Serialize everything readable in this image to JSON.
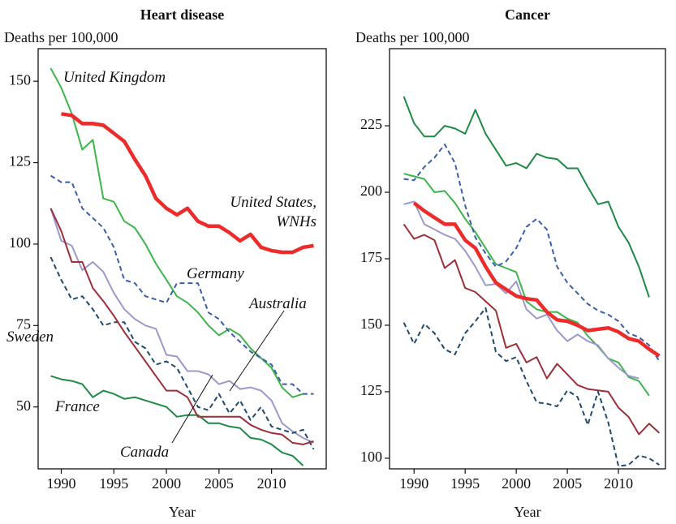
{
  "chart_data": [
    {
      "type": "line",
      "title": "Heart disease",
      "ylabel": "Deaths per 100,000",
      "xlabel": "Year",
      "x": [
        1989,
        1990,
        1991,
        1992,
        1993,
        1994,
        1995,
        1996,
        1997,
        1998,
        1999,
        2000,
        2001,
        2002,
        2003,
        2004,
        2005,
        2006,
        2007,
        2008,
        2009,
        2010,
        2011,
        2012,
        2013,
        2014
      ],
      "xlim": [
        1987.8,
        2015.2
      ],
      "xticks": [
        1990,
        1995,
        2000,
        2005,
        2010
      ],
      "ylim": [
        31,
        160
      ],
      "yticks": [
        50,
        75,
        100,
        125,
        150
      ],
      "series": [
        {
          "name": "United Kingdom",
          "color": "#3db54a",
          "values": [
            154,
            148,
            140,
            129,
            132,
            114,
            113,
            107,
            105,
            100,
            94,
            89,
            84,
            82,
            79,
            75,
            72,
            74,
            72,
            68,
            65,
            62,
            56,
            53,
            54,
            null
          ]
        },
        {
          "name": "United States, WNHs",
          "color": "#ee2b2b",
          "linewidth": 4.5,
          "values": [
            null,
            140,
            139.5,
            137,
            137,
            136.5,
            134,
            131.5,
            126,
            121,
            114,
            111,
            109,
            111,
            107,
            105.5,
            105.5,
            103.5,
            101,
            103,
            99,
            98,
            97.5,
            97.5,
            99,
            99.5
          ]
        },
        {
          "name": "Germany",
          "color": "#3a5ea8",
          "dash": true,
          "values": [
            121,
            119,
            119,
            111,
            108,
            105,
            99,
            89,
            88,
            84,
            83,
            82,
            88,
            88,
            88,
            79,
            77,
            73,
            70,
            67,
            65,
            63,
            57,
            57,
            54,
            54
          ]
        },
        {
          "name": "Australia",
          "color": "#9d98cc",
          "values": [
            111,
            101,
            99.5,
            92,
            94.5,
            91.5,
            85,
            80,
            77,
            75,
            74,
            66,
            65.5,
            61,
            61,
            60,
            57,
            58,
            55.5,
            56,
            55,
            52,
            45,
            42.5,
            40.5,
            39
          ]
        },
        {
          "name": "Sweden",
          "color": "#1f4a6e",
          "dash": true,
          "values": [
            96,
            89,
            83,
            84,
            80,
            75,
            76,
            76,
            70,
            68,
            63,
            64,
            62,
            56,
            50,
            49,
            54,
            48,
            52,
            46,
            50,
            44,
            43,
            42,
            43,
            37
          ]
        },
        {
          "name": "France",
          "color": "#1e8a45",
          "values": [
            59.5,
            58.5,
            58,
            57,
            53,
            55,
            54,
            52.5,
            53,
            52,
            51,
            50,
            47,
            47.5,
            47.5,
            45,
            45,
            44,
            43.5,
            40.5,
            40,
            38.5,
            36,
            35,
            32,
            null
          ]
        },
        {
          "name": "Canada",
          "color": "#9e2f3a",
          "values": [
            111,
            104,
            94.5,
            94.5,
            86.5,
            82.5,
            78,
            73,
            68.5,
            64,
            59.5,
            55,
            55,
            53,
            47,
            47,
            47,
            47,
            47,
            44.5,
            43,
            42,
            41.5,
            39,
            38.5,
            39.5
          ]
        }
      ]
    },
    {
      "type": "line",
      "title": "Cancer",
      "ylabel": "Deaths per 100,000",
      "xlabel": "Year",
      "x": [
        1989,
        1990,
        1991,
        1992,
        1993,
        1994,
        1995,
        1996,
        1997,
        1998,
        1999,
        2000,
        2001,
        2002,
        2003,
        2004,
        2005,
        2006,
        2007,
        2008,
        2009,
        2010,
        2011,
        2012,
        2013,
        2014
      ],
      "xlim": [
        1987.6,
        2014.6
      ],
      "xticks": [
        1990,
        1995,
        2000,
        2005,
        2010
      ],
      "ylim": [
        96,
        254
      ],
      "yticks": [
        100,
        125,
        150,
        175,
        200,
        225
      ],
      "series": [
        {
          "color": "#1e8a45",
          "values": [
            236,
            226,
            221,
            221,
            225,
            224,
            222,
            231,
            222,
            216,
            210,
            211,
            209,
            214.5,
            213,
            212.5,
            209,
            209,
            202,
            195.5,
            196.5,
            187,
            181,
            172,
            160.5,
            null
          ]
        },
        {
          "color": "#3db54a",
          "values": [
            207,
            206,
            205,
            200,
            200.5,
            196,
            190,
            185,
            179,
            173,
            171.5,
            170,
            159,
            156,
            155,
            155,
            152.5,
            151,
            146,
            142,
            137.5,
            136,
            130.5,
            129,
            123.5,
            null
          ]
        },
        {
          "color": "#3a5ea8",
          "dash": true,
          "values": [
            205,
            204.5,
            209.5,
            213,
            218,
            211,
            195,
            183,
            177,
            172,
            174,
            179,
            187,
            190,
            186,
            172,
            166,
            162,
            158,
            155.5,
            154,
            151.5,
            147,
            145.5,
            142.5,
            136.5
          ]
        },
        {
          "color": "#9d98cc",
          "values": [
            195.5,
            196.5,
            188,
            186,
            184,
            182.5,
            178,
            172,
            165,
            165.5,
            162,
            166.5,
            156,
            152.5,
            154,
            148,
            144,
            146.5,
            144,
            142.5,
            137.5,
            134,
            131,
            130,
            null,
            null
          ]
        },
        {
          "color": "#ee2b2b",
          "linewidth": 4.5,
          "values": [
            null,
            196,
            193,
            190.5,
            188,
            188,
            182,
            179,
            172,
            166,
            163.5,
            161,
            160,
            159.5,
            155,
            152,
            151.5,
            150,
            148,
            148.5,
            149,
            147.5,
            145,
            144,
            141,
            138.5
          ]
        },
        {
          "color": "#9e2f3a",
          "values": [
            188,
            182.5,
            184,
            182,
            171.5,
            174.5,
            164,
            162.5,
            159,
            155.5,
            141.5,
            143,
            136,
            138,
            130,
            135.5,
            131.5,
            127.5,
            126,
            125.5,
            125,
            119,
            115.5,
            109,
            113,
            109.5
          ]
        },
        {
          "color": "#1f4a6e",
          "dash": true,
          "values": [
            151,
            143,
            150.5,
            147,
            141,
            139,
            147,
            151.5,
            156.5,
            140,
            136.5,
            138,
            129,
            121,
            120.5,
            119.5,
            125.5,
            123,
            112.5,
            125,
            113.5,
            97,
            97.5,
            101,
            100,
            97.5
          ]
        }
      ]
    }
  ]
}
